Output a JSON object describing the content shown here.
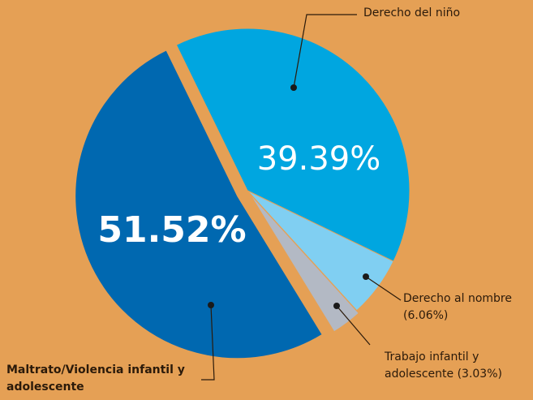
{
  "chart_data": {
    "type": "pie",
    "categories": [
      "Derecho del niño",
      "Derecho al nombre",
      "Trabajo infantil y adolescente",
      "Maltrato/Violencia infantil y adolescente"
    ],
    "values": [
      39.39,
      6.06,
      3.03,
      51.52
    ],
    "value_labels": [
      "39.39%",
      "(6.06%)",
      "(3.03%)",
      "51.52%"
    ],
    "colors": [
      "#00a6e0",
      "#80cff2",
      "#b3b9c4",
      "#0068b0"
    ]
  }
}
